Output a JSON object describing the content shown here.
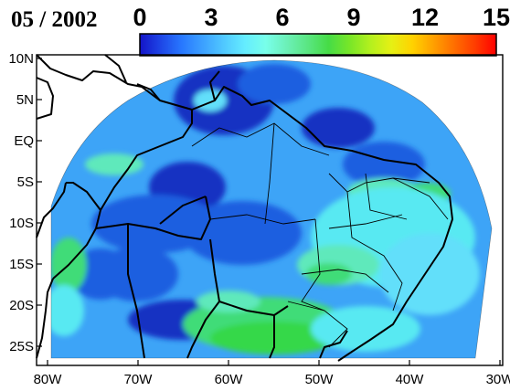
{
  "date_label": "05 / 2002",
  "colorbar": {
    "ticks": [
      "0",
      "3",
      "6",
      "9",
      "12",
      "15"
    ],
    "min": 0,
    "max": 15,
    "colors": [
      "#1414c8",
      "#1e46e6",
      "#2878ff",
      "#3ca0ff",
      "#50c8ff",
      "#64ecff",
      "#78ffea",
      "#6cf0b8",
      "#5ae682",
      "#46dc46",
      "#78e628",
      "#b4f01e",
      "#e6f014",
      "#ffd200",
      "#ffa000",
      "#ff6e00",
      "#ff3c00",
      "#ff0000"
    ]
  },
  "axes": {
    "lat_labels": [
      "10N",
      "5N",
      "EQ",
      "5S",
      "10S",
      "15S",
      "20S",
      "25S"
    ],
    "lon_labels": [
      "80W",
      "70W",
      "60W",
      "50W",
      "40W",
      "30W"
    ]
  },
  "field_palette": {
    "background": "#3da4f7",
    "deep_blue": "#1f5fe0",
    "navy": "#1733c2",
    "light_cyan": "#62dffa",
    "cyan": "#59e9f2",
    "aqua_green": "#5fe9bb",
    "green": "#3fdc78",
    "bright_green": "#34d84a"
  }
}
